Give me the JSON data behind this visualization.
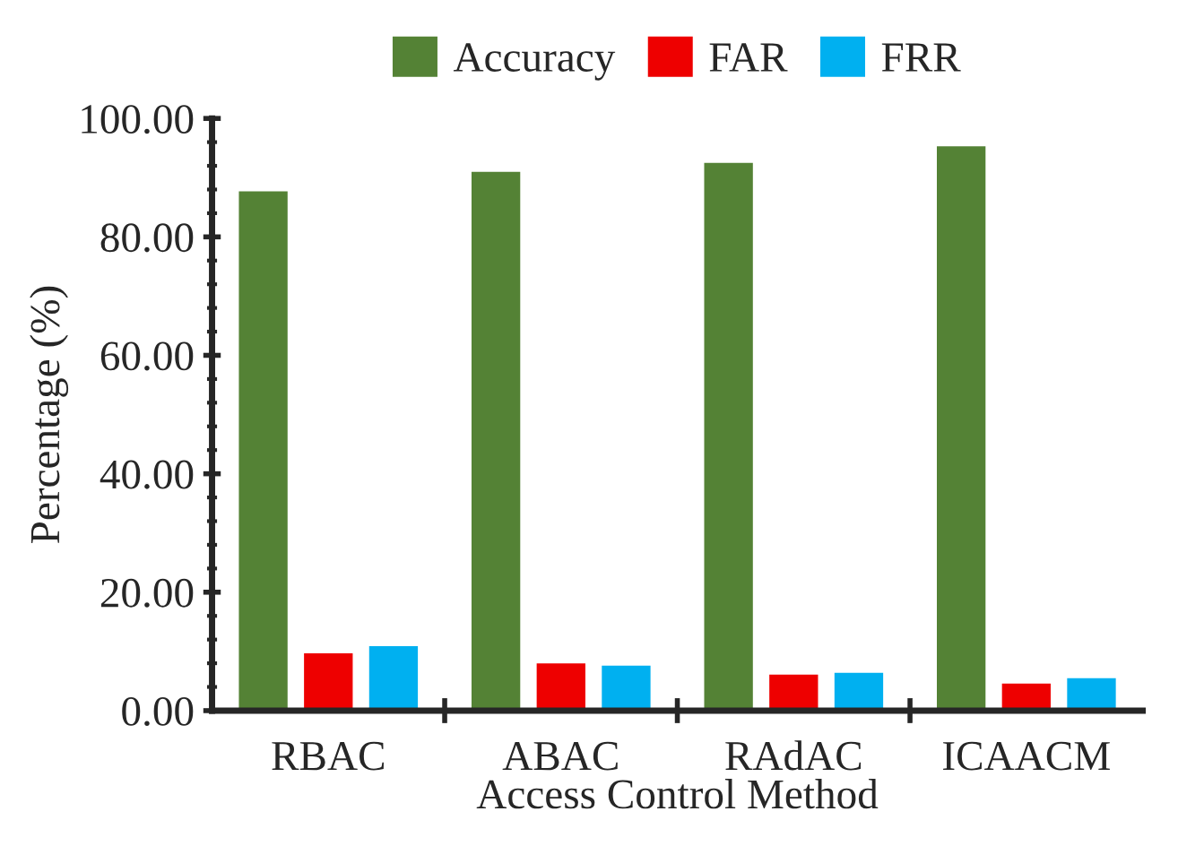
{
  "chart_data": {
    "type": "bar",
    "xlabel": "Access Control Method",
    "ylabel": "Percentage (%)",
    "categories": [
      "RBAC",
      "ABAC",
      "RAdAC",
      "ICAACM"
    ],
    "series": [
      {
        "name": "Accuracy",
        "color": "#548235",
        "values": [
          87.9,
          91.2,
          92.7,
          95.5
        ]
      },
      {
        "name": "FAR",
        "color": "#ee0000",
        "values": [
          9.9,
          8.2,
          6.3,
          4.8
        ]
      },
      {
        "name": "FRR",
        "color": "#00b0f0",
        "values": [
          11.1,
          7.8,
          6.6,
          5.7
        ]
      }
    ],
    "ylim": [
      0,
      100
    ],
    "yticks": [
      {
        "value": 0,
        "label": "0.00"
      },
      {
        "value": 20,
        "label": "20.00"
      },
      {
        "value": 40,
        "label": "40.00"
      },
      {
        "value": 60,
        "label": "60.00"
      },
      {
        "value": 80,
        "label": "80.00"
      },
      {
        "value": 100,
        "label": "100.00"
      }
    ],
    "grid": false,
    "legend": "top"
  }
}
